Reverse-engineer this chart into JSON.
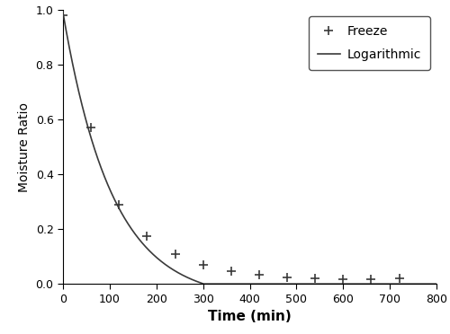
{
  "title": "",
  "xlabel": "Time (min)",
  "ylabel": "Moisture Ratio",
  "xlim": [
    0,
    800
  ],
  "ylim": [
    0.0,
    1.0
  ],
  "xticks": [
    0,
    100,
    200,
    300,
    400,
    500,
    600,
    700,
    800
  ],
  "yticks": [
    0.0,
    0.2,
    0.4,
    0.6,
    0.8,
    1.0
  ],
  "exp_x": [
    0,
    60,
    120,
    180,
    240,
    300,
    360,
    420,
    480,
    540,
    600,
    660,
    720
  ],
  "exp_y": [
    0.98,
    0.57,
    0.29,
    0.175,
    0.11,
    0.068,
    0.045,
    0.033,
    0.025,
    0.02,
    0.018,
    0.017,
    0.02
  ],
  "model_params": {
    "a": 1.05,
    "k": 0.0095,
    "b": -0.06
  },
  "line_color": "#3a3a3a",
  "marker_color": "#3a3a3a",
  "legend_freeze_label": "Freeze",
  "legend_log_label": "Logarithmic",
  "xlabel_fontsize": 11,
  "ylabel_fontsize": 10,
  "tick_fontsize": 9,
  "legend_fontsize": 10,
  "background_color": "#ffffff"
}
